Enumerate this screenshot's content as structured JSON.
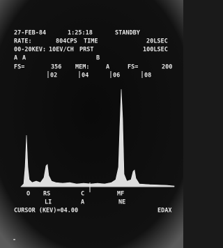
{
  "status_lines": [
    [
      "27-FEB-84",
      "1:25:18",
      "STANDBY"
    ],
    [
      "RATE:",
      "804CPS",
      "TIME",
      "20LSEC"
    ],
    [
      "00-20KEV:",
      "10EV/CH",
      "PRST",
      "100LSEC"
    ],
    [
      "A",
      "A",
      "B"
    ],
    [
      "FS=",
      "356",
      "MEM:",
      "A",
      "FS=",
      "200"
    ]
  ],
  "scale_marks": [
    "02",
    "04",
    "06",
    "08"
  ],
  "element_labels": [
    [
      "O",
      "RS",
      "C",
      "MF"
    ],
    [
      "LI",
      "A",
      "NE"
    ]
  ],
  "footer": {
    "cursor": "CURSOR (KEV)=04.00",
    "brand": "EDAX"
  },
  "marker": "-"
}
